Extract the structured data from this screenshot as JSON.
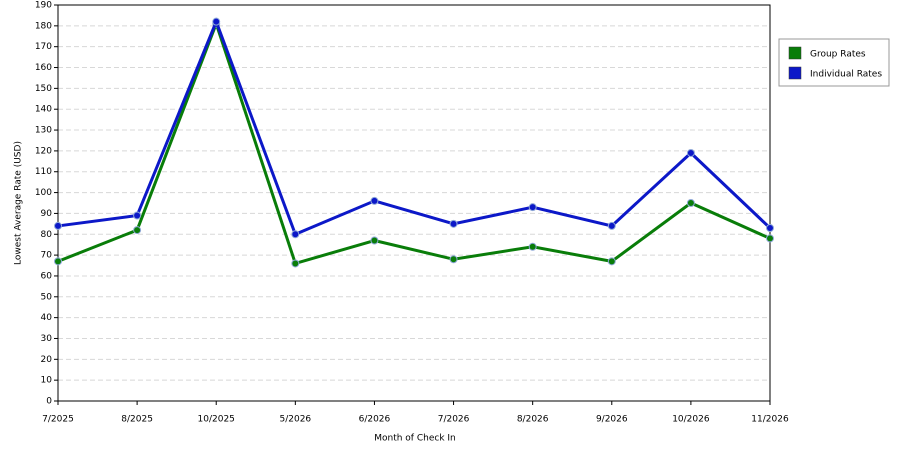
{
  "chart_data": {
    "type": "line",
    "x_label": "Month of Check In",
    "y_label": "Lowest Average Rate (USD)",
    "categories": [
      "7/2025",
      "8/2025",
      "10/2025",
      "5/2026",
      "6/2026",
      "7/2026",
      "8/2026",
      "9/2026",
      "10/2026",
      "11/2026"
    ],
    "series": [
      {
        "name": "Group Rates",
        "color": "#097d09",
        "values": [
          67,
          82,
          181,
          66,
          77,
          68,
          74,
          67,
          95,
          78
        ]
      },
      {
        "name": "Individual Rates",
        "color": "#0c18c8",
        "values": [
          84,
          89,
          182,
          80,
          96,
          85,
          93,
          84,
          119,
          83
        ]
      }
    ],
    "ylim": [
      0,
      190
    ],
    "yticks": [
      0,
      10,
      20,
      30,
      40,
      50,
      60,
      70,
      80,
      90,
      100,
      110,
      120,
      130,
      140,
      150,
      160,
      170,
      180,
      190
    ],
    "grid": true,
    "legend": "right"
  }
}
